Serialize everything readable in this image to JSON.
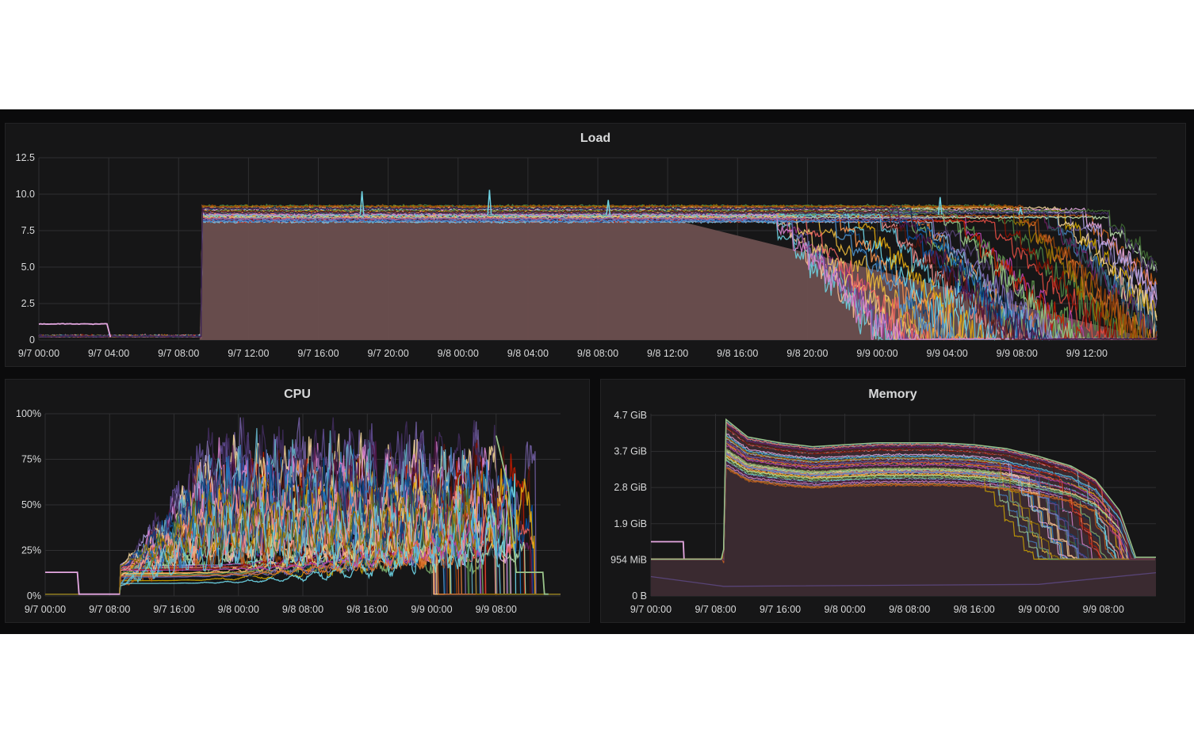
{
  "colors": {
    "background": "#0b0b0c",
    "panel": "#161617",
    "grid": "#2f2f31",
    "text": "#d8d9da",
    "palette": [
      "#6ed0e0",
      "#7eb26d",
      "#eab839",
      "#ef843c",
      "#e24d42",
      "#1f78c1",
      "#ba43a9",
      "#705da0",
      "#508642",
      "#cca300",
      "#447ebc",
      "#c15c17",
      "#890f02",
      "#0a437c",
      "#6d1f62",
      "#584477",
      "#b7dbab",
      "#f4d598",
      "#70dbed",
      "#f9ba8f",
      "#f29191",
      "#82b5d8",
      "#e5a8e2",
      "#aea2e0",
      "#629e51",
      "#e5ac0e",
      "#64b0c8",
      "#e0752d",
      "#bf1b00",
      "#0a50a1",
      "#962d82",
      "#614d93",
      "#9ac48a",
      "#f2c96d",
      "#65c5db",
      "#f9934e",
      "#ea6460",
      "#5195ce",
      "#d683ce",
      "#806eb7",
      "#3f6833",
      "#967302",
      "#2f575e",
      "#99440a",
      "#58140c",
      "#052b51",
      "#511749",
      "#3f2b5b"
    ],
    "load_fill": "#6b4f4f",
    "cpu_fill": "#2a2426",
    "mem_fill": "#3a2a30"
  },
  "panels": {
    "load": {
      "title": "Load"
    },
    "cpu": {
      "title": "CPU"
    },
    "memory": {
      "title": "Memory"
    }
  },
  "chart_data": [
    {
      "id": "load",
      "type": "line",
      "title": "Load",
      "x_unit": "hours since 9/7 00:00",
      "xlim": [
        0,
        64
      ],
      "ylim": [
        0,
        12.5
      ],
      "yticks": [
        0,
        2.5,
        5.0,
        7.5,
        10.0,
        12.5
      ],
      "ytick_labels": [
        "0",
        "2.5",
        "5.0",
        "7.5",
        "10.0",
        "12.5"
      ],
      "xticks": [
        0,
        4,
        8,
        12,
        16,
        20,
        24,
        28,
        32,
        36,
        40,
        44,
        48,
        52,
        56,
        60
      ],
      "xtick_labels": [
        "9/7 00:00",
        "9/7 04:00",
        "9/7 08:00",
        "9/7 12:00",
        "9/7 16:00",
        "9/7 20:00",
        "9/8 00:00",
        "9/8 04:00",
        "9/8 08:00",
        "9/8 12:00",
        "9/8 16:00",
        "9/8 20:00",
        "9/9 00:00",
        "9/9 04:00",
        "9/9 08:00",
        "9/9 12:00"
      ],
      "grid": true,
      "legend": "none",
      "stacked_area_envelope": {
        "x": [
          0,
          9.2,
          9.4,
          36.5,
          64
        ],
        "y": [
          0,
          0,
          8.2,
          8.2,
          0
        ]
      },
      "series_summary": {
        "count": 48,
        "plateau_start_h": 9.3,
        "plateau_value": 8.2,
        "plateau_band": [
          8.1,
          9.2
        ],
        "drop_start_range_h": [
          41,
          61
        ],
        "spikes": [
          {
            "x": 18.5,
            "y": 10.2
          },
          {
            "x": 25.8,
            "y": 10.3
          },
          {
            "x": 32.6,
            "y": 9.6
          },
          {
            "x": 51.6,
            "y": 9.8
          },
          {
            "x": 56.2,
            "y": 9.0
          }
        ],
        "pre_plateau": [
          {
            "name": "pink",
            "x": [
              0,
              4
            ],
            "y": 1.1
          }
        ]
      }
    },
    {
      "id": "cpu",
      "type": "line",
      "title": "CPU",
      "x_unit": "hours since 9/7 00:00",
      "xlim": [
        0,
        64
      ],
      "ylim": [
        0,
        100
      ],
      "yticks": [
        0,
        25,
        50,
        75,
        100
      ],
      "ytick_labels": [
        "0%",
        "25%",
        "50%",
        "75%",
        "100%"
      ],
      "xticks": [
        0,
        8,
        16,
        24,
        32,
        40,
        48,
        56
      ],
      "xtick_labels": [
        "9/7 00:00",
        "9/7 08:00",
        "9/7 16:00",
        "9/8 00:00",
        "9/8 08:00",
        "9/8 16:00",
        "9/9 00:00",
        "9/9 08:00"
      ],
      "grid": true,
      "legend": "none",
      "series_summary": {
        "count": 48,
        "active_range_h": [
          9.3,
          62.5
        ],
        "peak_range": [
          10,
          95
        ],
        "late_peaks": [
          {
            "x": 48.8,
            "y": 95
          },
          {
            "x": 56.5,
            "y": 88
          }
        ],
        "pre_active": [
          {
            "name": "pink",
            "x": [
              0,
              4
            ],
            "y": 13
          }
        ],
        "tail": [
          {
            "name": "light-green",
            "x": [
              58.5,
              61.8
            ],
            "y": 13
          }
        ]
      }
    },
    {
      "id": "memory",
      "type": "area",
      "title": "Memory",
      "x_unit": "hours since 9/7 00:00",
      "xlim": [
        0,
        62.5
      ],
      "ylim": [
        0,
        4.7
      ],
      "yticks": [
        0,
        0.932,
        1.864,
        2.796,
        3.728,
        4.66
      ],
      "ytick_labels": [
        "0 B",
        "954 MiB",
        "1.9 GiB",
        "2.8 GiB",
        "3.7 GiB",
        "4.7 GiB"
      ],
      "xticks": [
        0,
        8,
        16,
        24,
        32,
        40,
        48,
        56
      ],
      "xtick_labels": [
        "9/7 00:00",
        "9/7 08:00",
        "9/7 16:00",
        "9/8 00:00",
        "9/8 08:00",
        "9/8 16:00",
        "9/9 00:00",
        "9/9 08:00"
      ],
      "grid": true,
      "legend": "none",
      "envelope": {
        "x": [
          0,
          8.7,
          9.0,
          9.3,
          12,
          16,
          20,
          24,
          28,
          32,
          36,
          40,
          44,
          48,
          52,
          55,
          58,
          60,
          62.5
        ],
        "y": [
          0.95,
          0.95,
          1.2,
          4.55,
          4.1,
          3.95,
          3.85,
          3.9,
          3.95,
          3.95,
          3.95,
          3.9,
          3.8,
          3.6,
          3.35,
          3.0,
          2.2,
          1.0,
          1.0
        ]
      },
      "series_summary": {
        "count": 48,
        "baseline_pre": 0.95,
        "pre_active": [
          {
            "name": "pink",
            "x": [
              0,
              4
            ],
            "y": 1.4
          }
        ],
        "low_series": {
          "x": [
            0,
            9,
            48,
            62.5
          ],
          "y": [
            0.5,
            0.25,
            0.3,
            0.6
          ]
        }
      }
    }
  ]
}
